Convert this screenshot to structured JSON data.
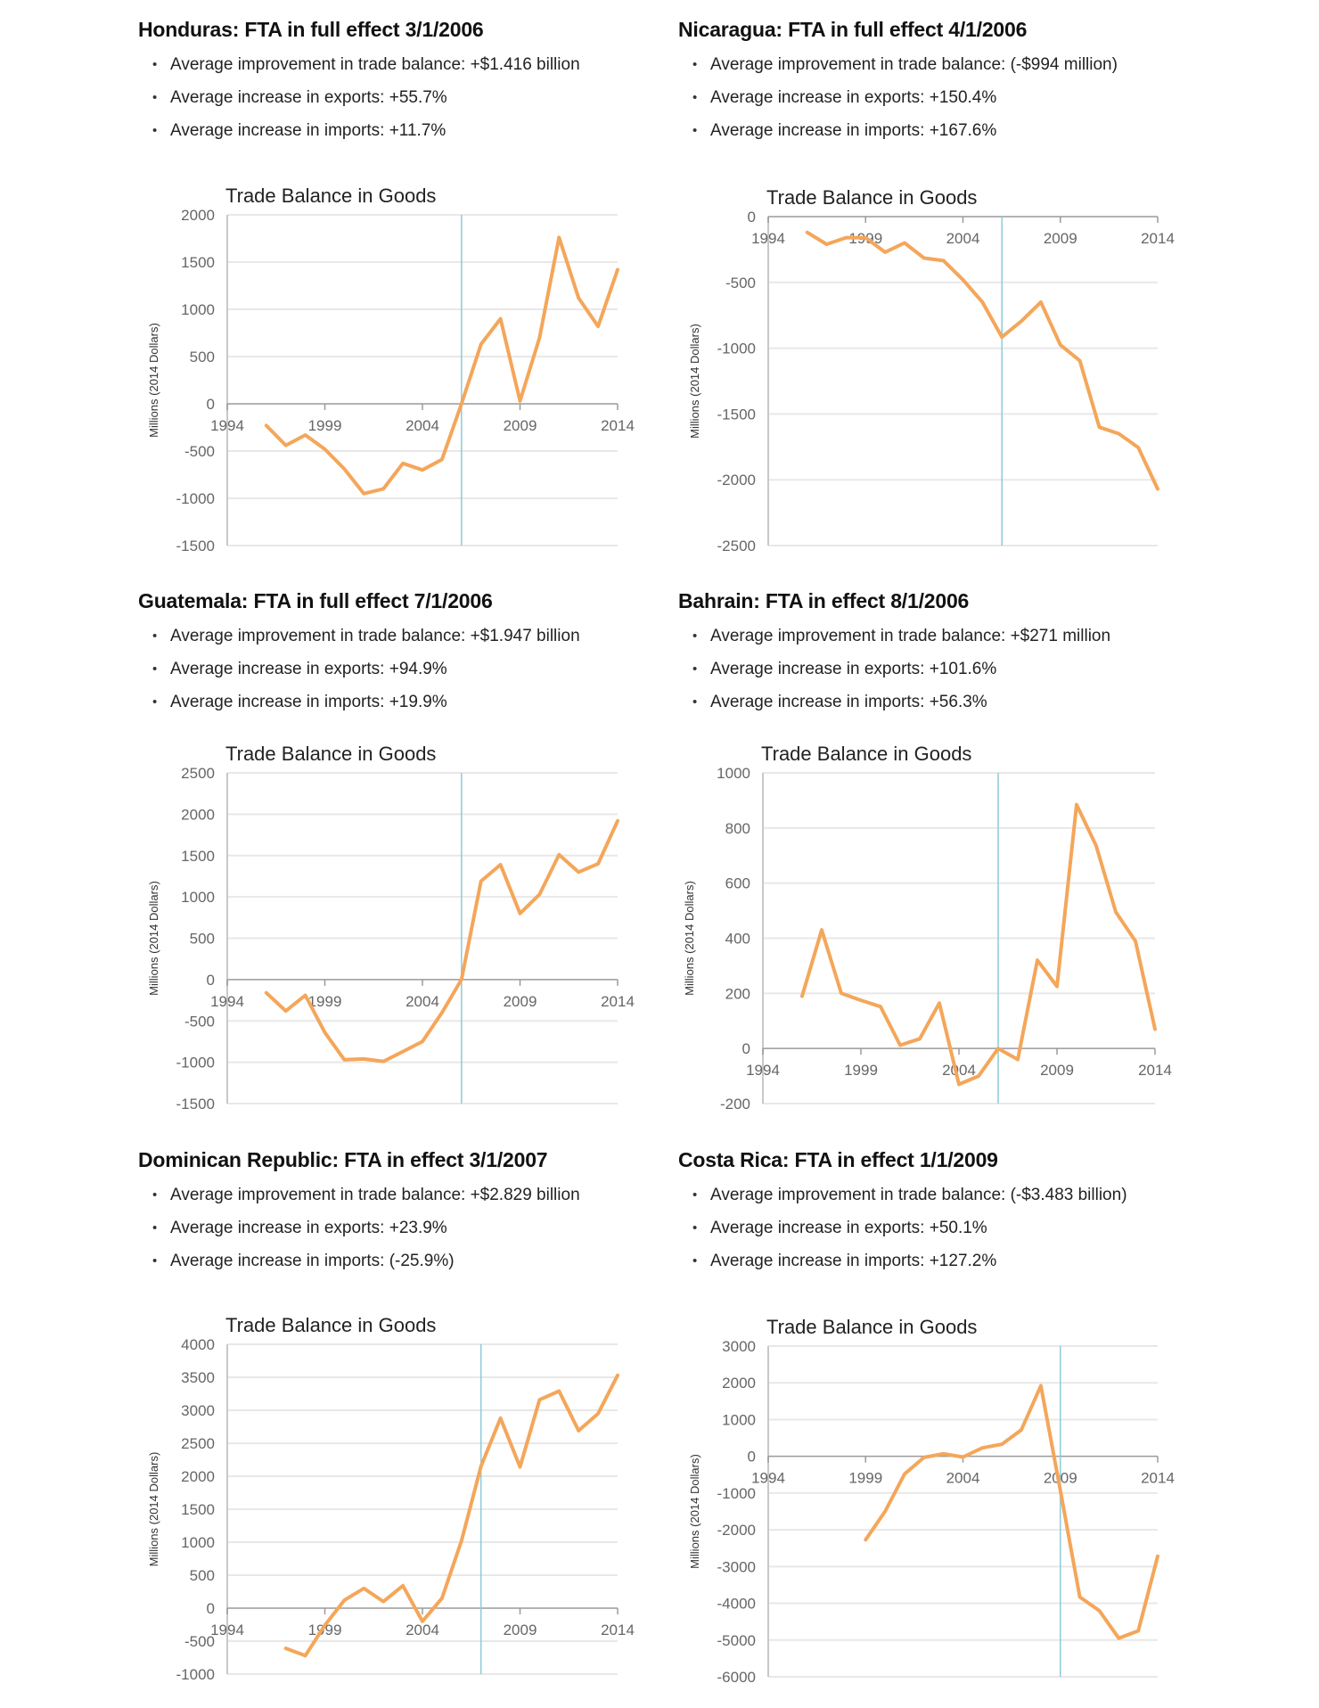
{
  "sections": [
    {
      "heading": "Honduras: FTA in full effect 3/1/2006",
      "bullets": [
        "Average improvement in trade balance: +$1.416 billion",
        "Average increase in exports: +55.7%",
        "Average increase in imports: +11.7%"
      ]
    },
    {
      "heading": "Nicaragua: FTA in full effect 4/1/2006",
      "bullets": [
        "Average improvement in trade balance: (-$994 million)",
        "Average increase in exports: +150.4%",
        "Average increase in imports: +167.6%"
      ]
    },
    {
      "heading": "Guatemala: FTA in full effect 7/1/2006",
      "bullets": [
        "Average improvement in trade balance: +$1.947 billion",
        "Average increase in exports: +94.9%",
        "Average increase in imports: +19.9%"
      ]
    },
    {
      "heading": "Bahrain: FTA in effect 8/1/2006",
      "bullets": [
        "Average improvement in trade balance: +$271 million",
        "Average increase in exports: +101.6%",
        "Average increase in imports: +56.3%"
      ]
    },
    {
      "heading": "Dominican Republic: FTA in effect 3/1/2007",
      "bullets": [
        "Average improvement in trade balance: +$2.829 billion",
        "Average increase in exports: +23.9%",
        "Average increase in imports: (-25.9%)"
      ]
    },
    {
      "heading": "Costa Rica: FTA in effect 1/1/2009",
      "bullets": [
        "Average improvement in trade balance: (-$3.483 billion)",
        "Average increase in exports: +50.1%",
        "Average increase in imports: +127.2%"
      ]
    }
  ],
  "colors": {
    "series": "#f4a65a",
    "fta_line": "#8ccbd8",
    "grid": "#e8e8e8",
    "axis": "#9a9a9a",
    "tick_text": "#666666"
  },
  "chart_data": [
    {
      "type": "line",
      "title": "Trade Balance in Goods",
      "xlabel": "",
      "ylabel": "Millions (2014 Dollars)",
      "xlim": [
        1994,
        2014
      ],
      "xticks": [
        1994,
        1999,
        2004,
        2009,
        2014
      ],
      "ylim": [
        -1500,
        2000
      ],
      "yticks": [
        -1500,
        -1000,
        -500,
        0,
        500,
        1000,
        1500,
        2000
      ],
      "grid": true,
      "fta_year": 2006,
      "x": [
        1996,
        1997,
        1998,
        1999,
        2000,
        2001,
        2002,
        2003,
        2004,
        2005,
        2006,
        2007,
        2008,
        2009,
        2010,
        2011,
        2012,
        2013,
        2014
      ],
      "values": [
        -230,
        -440,
        -330,
        -480,
        -690,
        -950,
        -900,
        -630,
        -700,
        -590,
        0,
        630,
        900,
        30,
        700,
        1760,
        1120,
        820,
        1420
      ]
    },
    {
      "type": "line",
      "title": "Trade Balance in Goods",
      "xlabel": "",
      "ylabel": "Millions (2014 Dollars)",
      "xlim": [
        1994,
        2014
      ],
      "xticks": [
        1994,
        1999,
        2004,
        2009,
        2014
      ],
      "ylim": [
        -2500,
        0
      ],
      "yticks": [
        -2500,
        -2000,
        -1500,
        -1000,
        -500,
        0
      ],
      "grid": true,
      "fta_year": 2006,
      "x": [
        1996,
        1997,
        1998,
        1999,
        2000,
        2001,
        2002,
        2003,
        2004,
        2005,
        2006,
        2007,
        2008,
        2009,
        2010,
        2011,
        2012,
        2013,
        2014
      ],
      "values": [
        -120,
        -210,
        -160,
        -160,
        -270,
        -200,
        -315,
        -335,
        -480,
        -650,
        -915,
        -795,
        -650,
        -975,
        -1095,
        -1600,
        -1650,
        -1755,
        -2070
      ]
    },
    {
      "type": "line",
      "title": "Trade Balance in Goods",
      "xlabel": "",
      "ylabel": "Millions (2014 Dollars)",
      "xlim": [
        1994,
        2014
      ],
      "xticks": [
        1994,
        1999,
        2004,
        2009,
        2014
      ],
      "ylim": [
        -1500,
        2500
      ],
      "yticks": [
        -1500,
        -1000,
        -500,
        0,
        500,
        1000,
        1500,
        2000,
        2500
      ],
      "grid": true,
      "fta_year": 2006,
      "x": [
        1996,
        1997,
        1998,
        1999,
        2000,
        2001,
        2002,
        2003,
        2004,
        2005,
        2006,
        2007,
        2008,
        2009,
        2010,
        2011,
        2012,
        2013,
        2014
      ],
      "values": [
        -160,
        -380,
        -190,
        -640,
        -970,
        -960,
        -990,
        -870,
        -750,
        -400,
        0,
        1190,
        1390,
        800,
        1030,
        1510,
        1300,
        1400,
        1920
      ]
    },
    {
      "type": "line",
      "title": "Trade Balance in Goods",
      "xlabel": "",
      "ylabel": "Millions (2014 Dollars)",
      "xlim": [
        1994,
        2014
      ],
      "xticks": [
        1994,
        1999,
        2004,
        2009,
        2014
      ],
      "ylim": [
        -200,
        1000
      ],
      "yticks": [
        -200,
        0,
        200,
        400,
        600,
        800,
        1000
      ],
      "grid": true,
      "fta_year": 2006,
      "x": [
        1996,
        1997,
        1998,
        1999,
        2000,
        2001,
        2002,
        2003,
        2004,
        2005,
        2006,
        2007,
        2008,
        2009,
        2010,
        2011,
        2012,
        2013,
        2014
      ],
      "values": [
        190,
        430,
        200,
        175,
        152,
        12,
        35,
        165,
        -130,
        -100,
        0,
        -40,
        320,
        225,
        885,
        735,
        495,
        390,
        70
      ]
    },
    {
      "type": "line",
      "title": "Trade Balance in Goods",
      "xlabel": "",
      "ylabel": "Millions (2014 Dollars)",
      "xlim": [
        1994,
        2014
      ],
      "xticks": [
        1994,
        1999,
        2004,
        2009,
        2014
      ],
      "ylim": [
        -1000,
        4000
      ],
      "yticks": [
        -1000,
        -500,
        0,
        500,
        1000,
        1500,
        2000,
        2500,
        3000,
        3500,
        4000
      ],
      "grid": true,
      "fta_year": 2007,
      "x": [
        1997,
        1998,
        1999,
        2000,
        2001,
        2002,
        2003,
        2004,
        2005,
        2006,
        2007,
        2008,
        2009,
        2010,
        2011,
        2012,
        2013,
        2014
      ],
      "values": [
        -610,
        -720,
        -260,
        120,
        300,
        100,
        340,
        -200,
        150,
        1020,
        2150,
        2880,
        2140,
        3160,
        3290,
        2690,
        2950,
        3530
      ]
    },
    {
      "type": "line",
      "title": "Trade Balance in Goods",
      "xlabel": "",
      "ylabel": "Millions (2014 Dollars)",
      "xlim": [
        1994,
        2014
      ],
      "xticks": [
        1994,
        1999,
        2004,
        2009,
        2014
      ],
      "ylim": [
        -6000,
        3000
      ],
      "yticks": [
        -6000,
        -5000,
        -4000,
        -3000,
        -2000,
        -1000,
        0,
        1000,
        2000,
        3000
      ],
      "grid": true,
      "fta_year": 2009,
      "x": [
        1999,
        2000,
        2001,
        2002,
        2003,
        2004,
        2005,
        2006,
        2007,
        2008,
        2009,
        2010,
        2011,
        2012,
        2013,
        2014
      ],
      "values": [
        -2270,
        -1500,
        -480,
        -30,
        70,
        -20,
        230,
        330,
        720,
        1920,
        -930,
        -3830,
        -4200,
        -4950,
        -4750,
        -2720
      ]
    }
  ]
}
